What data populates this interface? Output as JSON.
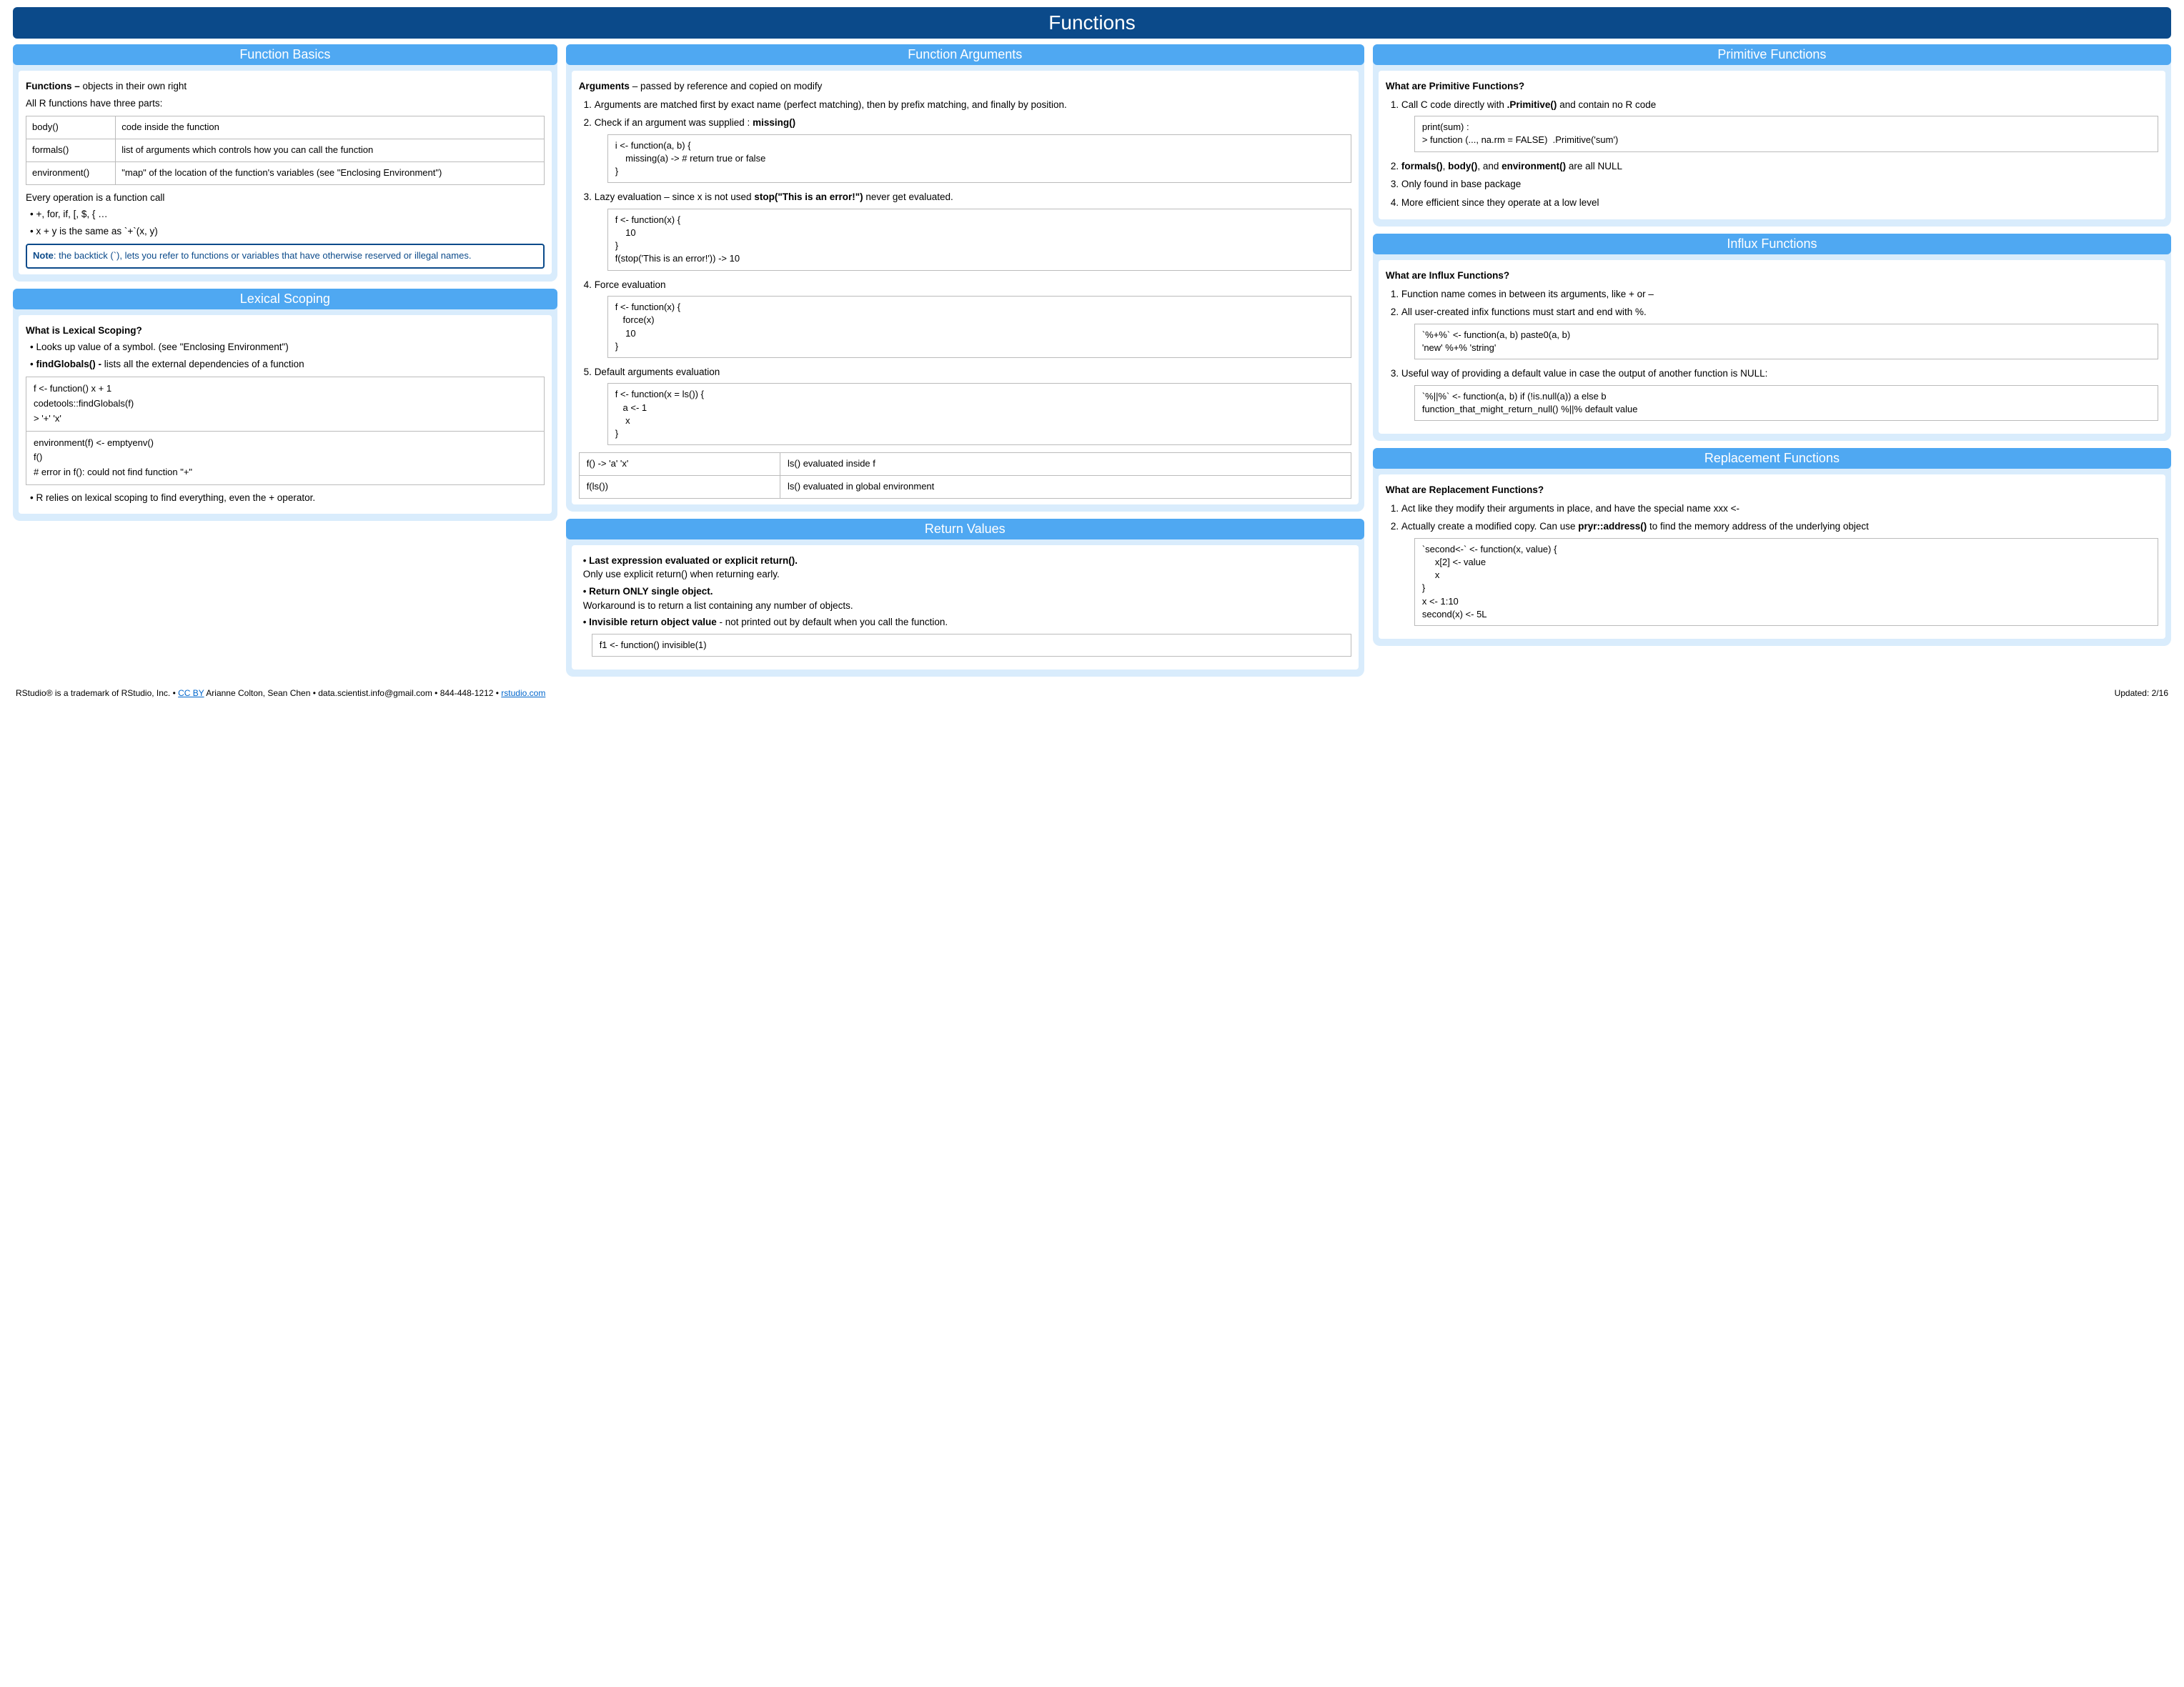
{
  "colors": {
    "main_header_bg": "#0b4a8a",
    "section_header_bg": "#4fa8f2",
    "panel_bg": "#d9ecfc",
    "border": "#bbbbbb",
    "link": "#0066cc"
  },
  "page_title": "Functions",
  "col1": {
    "basics": {
      "title": "Function Basics",
      "lead_html": "<b>Functions –</b> objects in their own right",
      "sub": "All R functions have three parts:",
      "parts": [
        {
          "name": "body()",
          "desc": "code inside the function"
        },
        {
          "name": "formals()",
          "desc": "list of arguments which controls how you can call the function"
        },
        {
          "name": "environment()",
          "desc": "\"map\" of the location of the function's variables (see \"Enclosing Environment\")"
        }
      ],
      "every_op": "Every operation is a function call",
      "ops_bullets": [
        "+, for, if, [, $, { …",
        "x + y is the same as `+`(x, y)"
      ],
      "note_html": "<b>Note</b>: the backtick (`), lets you refer to functions or variables that have otherwise reserved or illegal names."
    },
    "scoping": {
      "title": "Lexical Scoping",
      "heading": "What is Lexical Scoping?",
      "bullets_html": [
        "Looks up value of a symbol. (see \"Enclosing Environment\")",
        "<b>findGlobals() -</b> lists all the external dependencies of a function"
      ],
      "box1": "f <- function() x + 1\ncodetools::findGlobals(f)\n> '+' 'x'",
      "box2": "environment(f) <- emptyenv()\nf()\n# error in f(): could not find function \"+\"",
      "tail_bullet": "R relies on lexical scoping to find everything, even the + operator."
    }
  },
  "col2": {
    "args": {
      "title": "Function Arguments",
      "lead_html": "<b>Arguments</b> – passed by reference and copied on modify",
      "item1": "Arguments are matched first by exact name (perfect matching), then by prefix matching, and finally by position.",
      "item2_html": "Check if an argument was supplied :  <b>missing()</b>",
      "code2": "i <- function(a, b) {\n    missing(a) -> # return true or false\n}",
      "item3_html": "Lazy evaluation – since x is not used <b>stop(\"This is an error!\")</b> never get evaluated.",
      "code3": "f <- function(x) {\n    10\n}\nf(stop('This is an error!')) -> 10",
      "item4": "Force evaluation",
      "code4": "f <- function(x) {\n   force(x)\n    10\n}",
      "item5": "Default arguments evaluation",
      "code5": "f <- function(x = ls()) {\n   a <- 1\n    x\n}",
      "eval_table": [
        [
          "f() -> 'a' 'x'",
          "ls() evaluated inside f"
        ],
        [
          "f(ls())",
          "ls() evaluated in global environment"
        ]
      ]
    },
    "ret": {
      "title": "Return Values",
      "bullets_html": [
        "<b>Last expression evaluated or explicit return().</b><br>Only use explicit return() when returning early.",
        "<b>Return ONLY single object.</b><br>Workaround is to return a list containing any number of objects.",
        "<b>Invisible return object value</b> - not printed out by default  when you call the function."
      ],
      "code": "f1 <- function() invisible(1)"
    }
  },
  "col3": {
    "prim": {
      "title": "Primitive Functions",
      "heading": "What are Primitive Functions?",
      "item1_html": "Call C code directly with <b>.Primitive()</b> and contain no R code",
      "code1": "print(sum) :\n> function (..., na.rm = FALSE)  .Primitive('sum')",
      "item2_html": "<b>formals()</b>, <b>body()</b>, and <b>environment()</b> are all NULL",
      "item3": "Only found in base package",
      "item4": "More efficient since they operate at a low level"
    },
    "influx": {
      "title": "Influx Functions",
      "heading": "What are Influx Functions?",
      "item1": "Function name comes in between its arguments, like + or –",
      "item2": "All user-created infix functions must start and end with %.",
      "code2": "`%+%` <- function(a, b) paste0(a, b)\n'new' %+% 'string'",
      "item3": "Useful way of providing a default value in case the output of another function is NULL:",
      "code3": "`%||%` <- function(a, b) if (!is.null(a)) a else b\nfunction_that_might_return_null() %||% default value"
    },
    "repl": {
      "title": "Replacement Functions",
      "heading": "What are Replacement Functions?",
      "item1": "Act like they modify their arguments in place, and have the special name xxx <-",
      "item2_html": "Actually create a modified copy. Can use <b>pryr::address()</b> to find the memory address of the underlying object",
      "code": "`second<-` <- function(x, value) {\n     x[2] <- value\n     x\n}\nx <- 1:10\nsecond(x) <- 5L"
    }
  },
  "footer": {
    "left_html": "RStudio® is a trademark of RStudio, Inc.  •  <a href=\"#\">CC BY</a>  Arianne Colton, Sean Chen •  data.scientist.info@gmail.com  •  844-448-1212 • <a href=\"#\">rstudio.com</a>",
    "right": "Updated: 2/16"
  }
}
